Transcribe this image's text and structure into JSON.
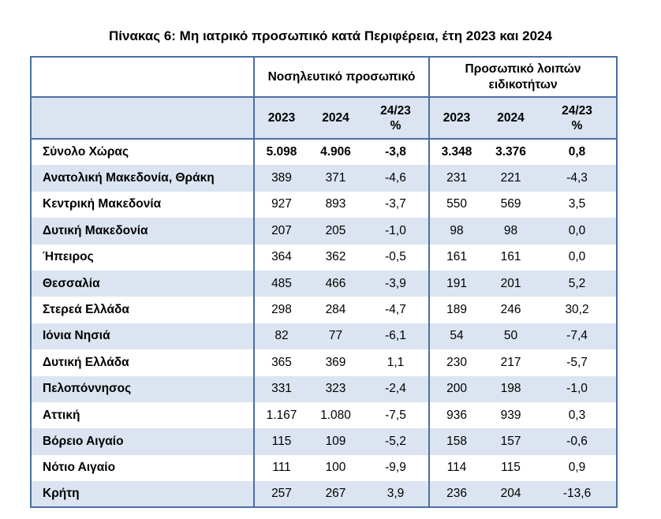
{
  "title": "Πίνακας 6: Μη ιατρικό προσωπικό κατά Περιφέρεια, έτη 2023 και 2024",
  "groups": {
    "nursing": "Νοσηλευτικό προσωπικό",
    "other_line1": "Προσωπικό λοιπών",
    "other_line2": "ειδικοτήτων"
  },
  "columns": {
    "y2023": "2023",
    "y2024": "2024",
    "change_line1": "24/23",
    "change_line2": "%"
  },
  "rows": [
    {
      "region": "Σύνολο Χώρας",
      "n2023": "5.098",
      "n2024": "4.906",
      "nchg": "-3,8",
      "o2023": "3.348",
      "o2024": "3.376",
      "ochg": "0,8"
    },
    {
      "region": "Ανατολική Μακεδονία, Θράκη",
      "n2023": "389",
      "n2024": "371",
      "nchg": "-4,6",
      "o2023": "231",
      "o2024": "221",
      "ochg": "-4,3"
    },
    {
      "region": "Κεντρική Μακεδονία",
      "n2023": "927",
      "n2024": "893",
      "nchg": "-3,7",
      "o2023": "550",
      "o2024": "569",
      "ochg": "3,5"
    },
    {
      "region": "Δυτική Μακεδονία",
      "n2023": "207",
      "n2024": "205",
      "nchg": "-1,0",
      "o2023": "98",
      "o2024": "98",
      "ochg": "0,0"
    },
    {
      "region": "Ήπειρος",
      "n2023": "364",
      "n2024": "362",
      "nchg": "-0,5",
      "o2023": "161",
      "o2024": "161",
      "ochg": "0,0"
    },
    {
      "region": "Θεσσαλία",
      "n2023": "485",
      "n2024": "466",
      "nchg": "-3,9",
      "o2023": "191",
      "o2024": "201",
      "ochg": "5,2"
    },
    {
      "region": "Στερεά Ελλάδα",
      "n2023": "298",
      "n2024": "284",
      "nchg": "-4,7",
      "o2023": "189",
      "o2024": "246",
      "ochg": "30,2"
    },
    {
      "region": "Ιόνια Νησιά",
      "n2023": "82",
      "n2024": "77",
      "nchg": "-6,1",
      "o2023": "54",
      "o2024": "50",
      "ochg": "-7,4"
    },
    {
      "region": "Δυτική Ελλάδα",
      "n2023": "365",
      "n2024": "369",
      "nchg": "1,1",
      "o2023": "230",
      "o2024": "217",
      "ochg": "-5,7"
    },
    {
      "region": "Πελοπόννησος",
      "n2023": "331",
      "n2024": "323",
      "nchg": "-2,4",
      "o2023": "200",
      "o2024": "198",
      "ochg": "-1,0"
    },
    {
      "region": "Αττική",
      "n2023": "1.167",
      "n2024": "1.080",
      "nchg": "-7,5",
      "o2023": "936",
      "o2024": "939",
      "ochg": "0,3"
    },
    {
      "region": "Βόρειο Αιγαίο",
      "n2023": "115",
      "n2024": "109",
      "nchg": "-5,2",
      "o2023": "158",
      "o2024": "157",
      "ochg": "-0,6"
    },
    {
      "region": "Νότιο Αιγαίο",
      "n2023": "111",
      "n2024": "100",
      "nchg": "-9,9",
      "o2023": "114",
      "o2024": "115",
      "ochg": "0,9"
    },
    {
      "region": "Κρήτη",
      "n2023": "257",
      "n2024": "267",
      "nchg": "3,9",
      "o2023": "236",
      "o2024": "204",
      "ochg": "-13,6"
    }
  ],
  "colors": {
    "border": "#4a6fa5",
    "row_shade": "#dbe4f0"
  }
}
